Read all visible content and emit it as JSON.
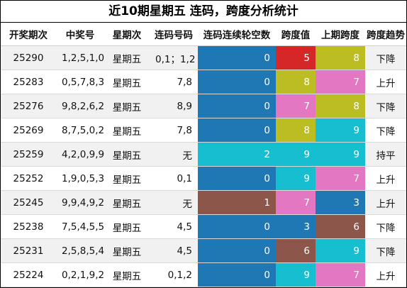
{
  "title": "近10期星期五 连码，跨度分析统计",
  "headers": [
    "开奖期次",
    "中奖号",
    "星期次",
    "连码号码",
    "连码连续轮空数",
    "跨度值",
    "上期跨度",
    "跨度趋势"
  ],
  "colors": {
    "0": "#1f77b4",
    "1": "#8c564b",
    "2": "#17becf",
    "3": "#1f77b4",
    "5": "#d62728",
    "6": "#8c564b",
    "7": "#e377c2",
    "8": "#bcbd22",
    "9": "#17becf"
  },
  "rows": [
    {
      "issue": "25290",
      "numbers": "1,2,5,1,0",
      "weekday": "星期五",
      "lian": "0,1；1,2",
      "skip": "0",
      "span": "5",
      "prev": "8",
      "trend": "下降"
    },
    {
      "issue": "25283",
      "numbers": "0,5,7,8,3",
      "weekday": "星期五",
      "lian": "7,8",
      "skip": "0",
      "span": "8",
      "prev": "7",
      "trend": "上升"
    },
    {
      "issue": "25276",
      "numbers": "9,8,2,6,2",
      "weekday": "星期五",
      "lian": "8,9",
      "skip": "0",
      "span": "7",
      "prev": "8",
      "trend": "下降"
    },
    {
      "issue": "25269",
      "numbers": "8,7,5,0,2",
      "weekday": "星期五",
      "lian": "7,8",
      "skip": "0",
      "span": "8",
      "prev": "9",
      "trend": "下降"
    },
    {
      "issue": "25259",
      "numbers": "4,2,0,9,9",
      "weekday": "星期五",
      "lian": "无",
      "skip": "2",
      "span": "9",
      "prev": "9",
      "trend": "持平"
    },
    {
      "issue": "25252",
      "numbers": "1,9,0,5,3",
      "weekday": "星期五",
      "lian": "0,1",
      "skip": "0",
      "span": "9",
      "prev": "7",
      "trend": "上升"
    },
    {
      "issue": "25245",
      "numbers": "9,9,4,9,2",
      "weekday": "星期五",
      "lian": "无",
      "skip": "1",
      "span": "7",
      "prev": "3",
      "trend": "上升"
    },
    {
      "issue": "25238",
      "numbers": "7,5,4,5,5",
      "weekday": "星期五",
      "lian": "4,5",
      "skip": "0",
      "span": "3",
      "prev": "6",
      "trend": "下降"
    },
    {
      "issue": "25231",
      "numbers": "2,5,8,5,4",
      "weekday": "星期五",
      "lian": "4,5",
      "skip": "0",
      "span": "6",
      "prev": "9",
      "trend": "下降"
    },
    {
      "issue": "25224",
      "numbers": "0,2,1,9,2",
      "weekday": "星期五",
      "lian": "0,1,2",
      "skip": "0",
      "span": "9",
      "prev": "7",
      "trend": "上升"
    }
  ]
}
